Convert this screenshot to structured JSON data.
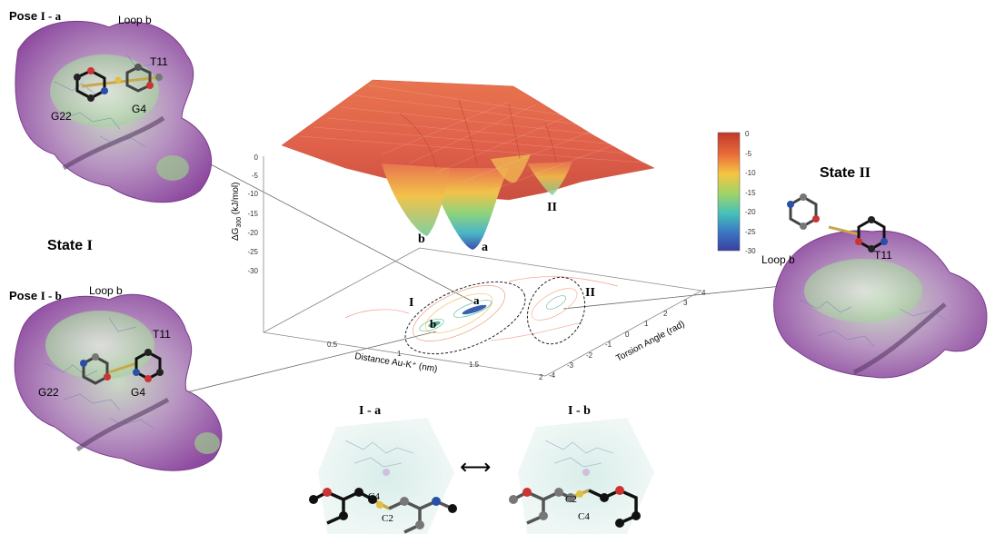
{
  "panels": {
    "pose_ia": {
      "title_prefix": "Pose ",
      "title_roman": "I",
      "title_suffix": " - a",
      "loop": "Loop b",
      "t11": "T11",
      "g22": "G22",
      "g4": "G4"
    },
    "pose_ib": {
      "title_prefix": "Pose ",
      "title_roman": "I",
      "title_suffix": " - b",
      "loop": "Loop b",
      "t11": "T11",
      "g22": "G22",
      "g4": "G4"
    },
    "state_i": {
      "prefix": "State ",
      "roman": "I"
    },
    "state_ii": {
      "prefix": "State ",
      "roman": "II",
      "loop": "Loop b",
      "t11": "T11"
    }
  },
  "plot": {
    "z_axis_label": "ΔG",
    "z_axis_sub": "300",
    "z_axis_unit": " (kJ/mol)",
    "z_ticks": [
      "0",
      "-5",
      "-10",
      "-15",
      "-20",
      "-25",
      "-30"
    ],
    "x_axis_label": "Distance Au-K⁺ (nm)",
    "x_ticks": [
      "0.5",
      "1",
      "1.5",
      "2"
    ],
    "y_axis_label": "Torsion Angle (rad)",
    "y_ticks": [
      "-4",
      "-3",
      "-2",
      "-1",
      "0",
      "1",
      "2",
      "3",
      "4"
    ],
    "surface_labels": {
      "a": "a",
      "b": "b",
      "II": "II"
    },
    "contour_labels": {
      "I": "I",
      "a": "a",
      "b": "b",
      "II": "II"
    }
  },
  "colorbar": {
    "ticks": [
      "0",
      "-5",
      "-10",
      "-15",
      "-20",
      "-25",
      "-30"
    ],
    "colors": [
      "#c0392b",
      "#e86a3a",
      "#f5c542",
      "#9fd36a",
      "#46c3b8",
      "#3b78c4",
      "#3a3f9e"
    ]
  },
  "bottom": {
    "left_title_roman": "I",
    "left_title_suffix": " - a",
    "right_title_roman": "I",
    "right_title_suffix": " - b",
    "arrow": "⟷",
    "left_c4": "C4",
    "left_c2": "C2",
    "right_c2": "C2",
    "right_c4": "C4"
  }
}
